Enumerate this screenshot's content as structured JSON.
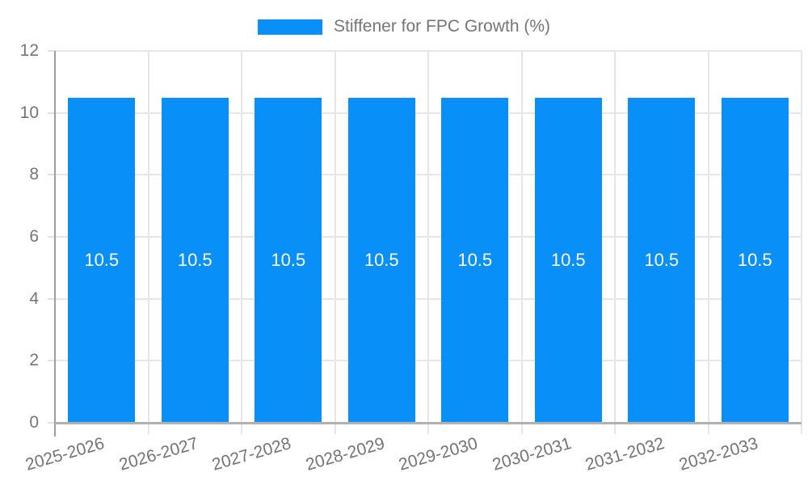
{
  "legend": {
    "label": "Stiffener for FPC Growth (%)"
  },
  "chart_data": {
    "type": "bar",
    "title": "Stiffener for FPC Growth (%)",
    "categories": [
      "2025-2026",
      "2026-2027",
      "2027-2028",
      "2028-2029",
      "2029-2030",
      "2030-2031",
      "2031-2032",
      "2032-2033"
    ],
    "values": [
      10.5,
      10.5,
      10.5,
      10.5,
      10.5,
      10.5,
      10.5,
      10.5
    ],
    "value_labels": [
      "10.5",
      "10.5",
      "10.5",
      "10.5",
      "10.5",
      "10.5",
      "10.5",
      "10.5"
    ],
    "xlabel": "",
    "ylabel": "",
    "ylim": [
      0,
      12
    ],
    "yticks": [
      0,
      2,
      4,
      6,
      8,
      10,
      12
    ],
    "grid": true,
    "legend_position": "top",
    "colors": {
      "bar": "#0990f8",
      "bar_label": "#ffffff",
      "axis_text": "#757575",
      "gridline": "#e6e6e6",
      "y_axis_line": "#9e9e9e",
      "baseline": "#b1b1b1",
      "tick": "#e0e0e0"
    }
  }
}
